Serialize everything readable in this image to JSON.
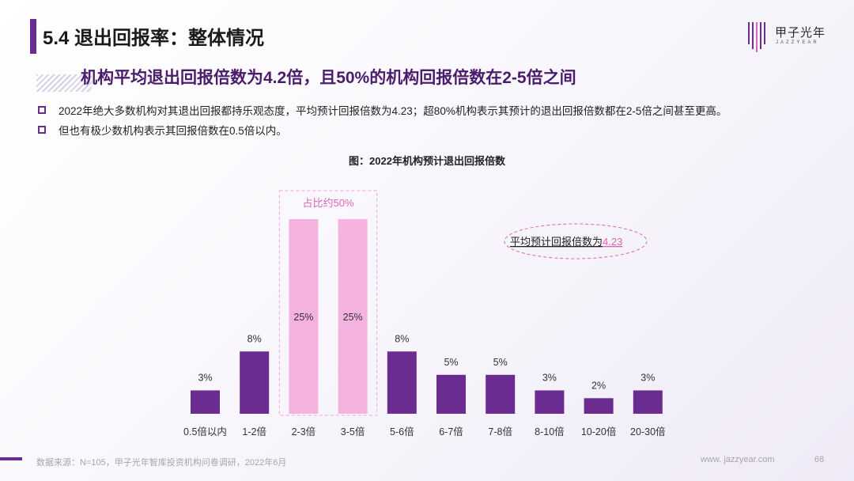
{
  "header": {
    "title": "5.4 退出回报率：整体情况",
    "logo_cn": "甲子光年",
    "logo_en": "JAZZYEAR"
  },
  "subtitle": "机构平均退出回报倍数为4.2倍，且50%的机构回报倍数在2-5倍之间",
  "bullets": [
    "2022年绝大多数机构对其退出回报都持乐观态度，平均预计回报倍数为4.23；超80%机构表示其预计的退出回报倍数都在2-5倍之间甚至更高。",
    "但也有极少数机构表示其回报倍数在0.5倍以内。"
  ],
  "chart_data": {
    "type": "bar",
    "title": "图：2022年机构预计退出回报倍数",
    "categories": [
      "0.5倍以内",
      "1-2倍",
      "2-3倍",
      "3-5倍",
      "5-6倍",
      "6-7倍",
      "7-8倍",
      "8-10倍",
      "10-20倍",
      "20-30倍"
    ],
    "values": [
      3,
      8,
      25,
      25,
      8,
      5,
      5,
      3,
      2,
      3
    ],
    "value_labels": [
      "3%",
      "8%",
      "25%",
      "25%",
      "8%",
      "5%",
      "5%",
      "3%",
      "2%",
      "3%"
    ],
    "highlight_indices": [
      2,
      3
    ],
    "colors": {
      "default": "#6a2c91",
      "highlight": "#f4b3de",
      "accent": "#e064b4"
    },
    "highlight_annotation": "占比约50%",
    "average_annotation_prefix": "平均预计回报倍数为",
    "average_annotation_value": "4.23",
    "ylim": [
      0,
      25
    ],
    "xlabel": "",
    "ylabel": ""
  },
  "footer": {
    "source": "数据来源：N=105，甲子光年智库投资机构问卷调研，2022年6月",
    "url": "www. jazzyear.com",
    "page": "68"
  }
}
